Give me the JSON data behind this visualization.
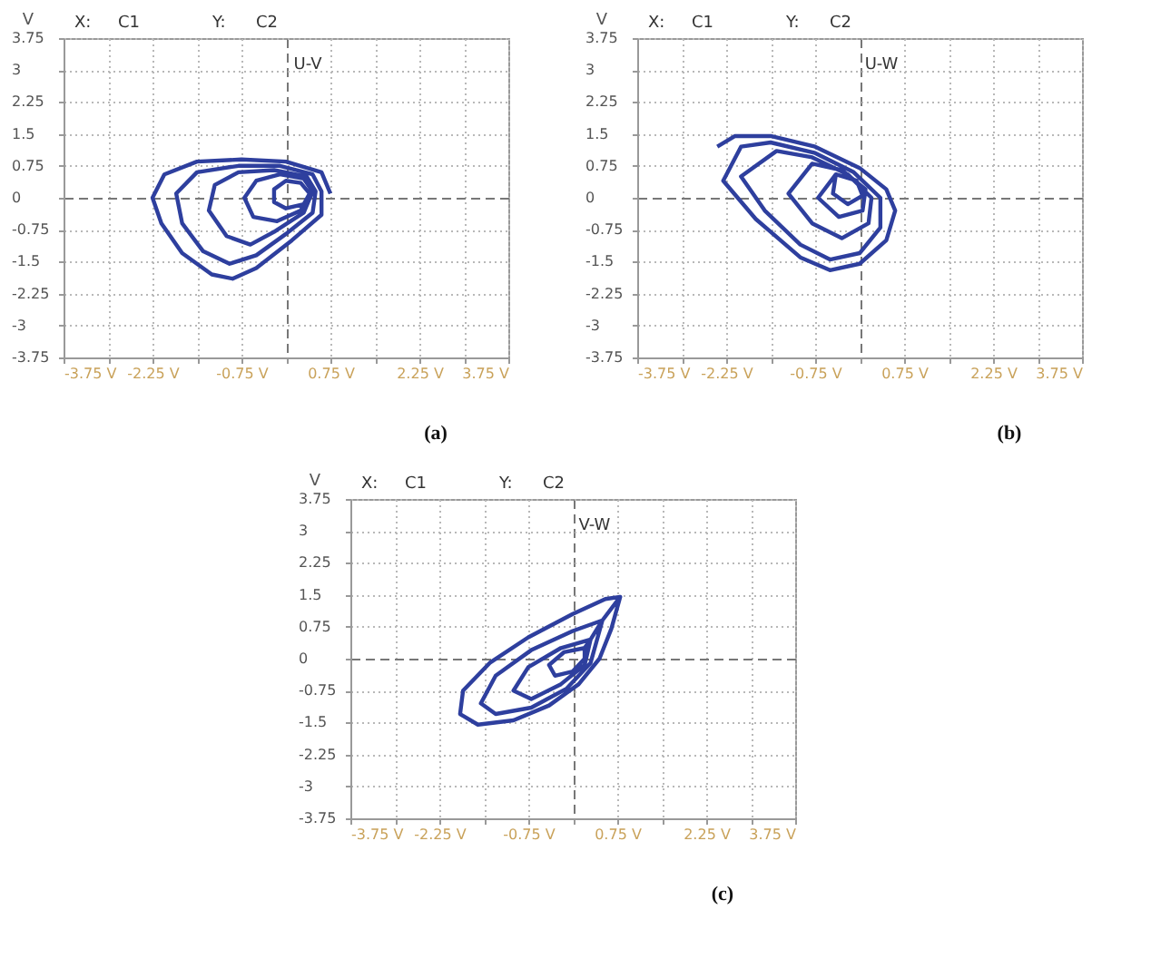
{
  "chart_data": [
    {
      "type": "line",
      "title": "U-V",
      "ylabel": "V",
      "annotations": [
        "X:",
        "C1",
        "Y:",
        "C2",
        "(a)"
      ],
      "xlim": [
        -3.75,
        3.75
      ],
      "ylim": [
        -3.75,
        3.75
      ],
      "xticks": [
        {
          "value": -3.75,
          "label": "-3.75 V"
        },
        {
          "value": -3,
          "label": null
        },
        {
          "value": -2.25,
          "label": "-2.25 V"
        },
        {
          "value": -1.5,
          "label": null
        },
        {
          "value": -0.75,
          "label": "-0.75 V"
        },
        {
          "value": 0,
          "label": null
        },
        {
          "value": 0.75,
          "label": "0.75 V"
        },
        {
          "value": 1.5,
          "label": null
        },
        {
          "value": 2.25,
          "label": "2.25 V"
        },
        {
          "value": 3,
          "label": null
        },
        {
          "value": 3.75,
          "label": "3.75 V"
        }
      ],
      "yticks": [
        -3.75,
        -3,
        -2.25,
        -1.5,
        -0.75,
        0,
        0.75,
        1.5,
        2.25,
        3,
        3.75
      ],
      "grid": true,
      "marker": "none",
      "line_style": "solid",
      "series": [
        {
          "color": "#2e3f9e",
          "x": [
            0.75,
            0.6,
            0.0,
            -0.75,
            -1.5,
            -2.05,
            -2.25,
            -2.1,
            -1.75,
            -1.25,
            -0.9,
            -0.5,
            0.1,
            0.6,
            0.6,
            0.45,
            -0.1,
            -0.8,
            -1.5,
            -1.85,
            -1.75,
            -1.4,
            -0.95,
            -0.5,
            0.0,
            0.45,
            0.5,
            0.35,
            -0.2,
            -0.8,
            -1.2,
            -1.3,
            -1.0,
            -0.6,
            -0.2,
            0.3,
            0.45,
            0.3,
            -0.1,
            -0.5,
            -0.7,
            -0.55,
            -0.15,
            0.25,
            0.4,
            0.25,
            0.0,
            -0.2,
            -0.2,
            0.0,
            0.3,
            0.4
          ],
          "values": [
            0.1,
            0.6,
            0.85,
            0.9,
            0.85,
            0.55,
            0.0,
            -0.6,
            -1.3,
            -1.8,
            -1.9,
            -1.65,
            -1.0,
            -0.4,
            0.15,
            0.55,
            0.75,
            0.75,
            0.6,
            0.1,
            -0.6,
            -1.25,
            -1.55,
            -1.35,
            -0.85,
            -0.35,
            0.15,
            0.5,
            0.65,
            0.6,
            0.3,
            -0.3,
            -0.9,
            -1.1,
            -0.8,
            -0.35,
            0.15,
            0.45,
            0.55,
            0.4,
            0.0,
            -0.45,
            -0.55,
            -0.3,
            0.1,
            0.35,
            0.4,
            0.2,
            -0.1,
            -0.25,
            -0.15,
            0.1
          ]
        }
      ]
    },
    {
      "type": "line",
      "title": "U-W",
      "ylabel": "V",
      "annotations": [
        "X:",
        "C1",
        "Y:",
        "C2",
        "(b)"
      ],
      "xlim": [
        -3.75,
        3.75
      ],
      "ylim": [
        -3.75,
        3.75
      ],
      "xticks": [
        {
          "value": -3.75,
          "label": "-3.75 V"
        },
        {
          "value": -3,
          "label": null
        },
        {
          "value": -2.25,
          "label": "-2.25 V"
        },
        {
          "value": -1.5,
          "label": null
        },
        {
          "value": -0.75,
          "label": "-0.75 V"
        },
        {
          "value": 0,
          "label": null
        },
        {
          "value": 0.75,
          "label": "0.75 V"
        },
        {
          "value": 1.5,
          "label": null
        },
        {
          "value": 2.25,
          "label": "2.25 V"
        },
        {
          "value": 3,
          "label": null
        },
        {
          "value": 3.75,
          "label": "3.75 V"
        }
      ],
      "yticks": [
        -3.75,
        -3,
        -2.25,
        -1.5,
        -0.75,
        0,
        0.75,
        1.5,
        2.25,
        3,
        3.75
      ],
      "grid": true,
      "marker": "none",
      "line_style": "solid",
      "series": [
        {
          "color": "#2e3f9e",
          "x": [
            -2.4,
            -2.1,
            -1.5,
            -0.75,
            0.0,
            0.45,
            0.6,
            0.45,
            0.0,
            -0.5,
            -1.0,
            -1.75,
            -2.3,
            -2.0,
            -1.5,
            -0.75,
            -0.1,
            0.35,
            0.35,
            0.0,
            -0.5,
            -1.0,
            -1.6,
            -2.0,
            -1.4,
            -0.8,
            -0.2,
            0.2,
            0.15,
            -0.3,
            -0.8,
            -1.2,
            -0.8,
            -0.3,
            0.1,
            0.05,
            -0.35,
            -0.7,
            -0.4,
            -0.05,
            0.05,
            -0.2,
            -0.45,
            -0.4
          ],
          "values": [
            1.2,
            1.45,
            1.45,
            1.2,
            0.7,
            0.2,
            -0.3,
            -1.0,
            -1.55,
            -1.7,
            -1.4,
            -0.5,
            0.4,
            1.2,
            1.3,
            1.05,
            0.6,
            0.0,
            -0.7,
            -1.3,
            -1.45,
            -1.1,
            -0.3,
            0.5,
            1.1,
            0.95,
            0.55,
            0.0,
            -0.6,
            -0.95,
            -0.6,
            0.1,
            0.8,
            0.65,
            0.2,
            -0.3,
            -0.45,
            0.0,
            0.55,
            0.4,
            0.05,
            -0.15,
            0.1,
            0.55
          ]
        }
      ]
    },
    {
      "type": "line",
      "title": "V-W",
      "ylabel": "V",
      "annotations": [
        "X:",
        "C1",
        "Y:",
        "C2",
        "(c)"
      ],
      "xlim": [
        -3.75,
        3.75
      ],
      "ylim": [
        -3.75,
        3.75
      ],
      "xticks": [
        {
          "value": -3.75,
          "label": "-3.75 V"
        },
        {
          "value": -3,
          "label": null
        },
        {
          "value": -2.25,
          "label": "-2.25 V"
        },
        {
          "value": -1.5,
          "label": null
        },
        {
          "value": -0.75,
          "label": "-0.75 V"
        },
        {
          "value": 0,
          "label": null
        },
        {
          "value": 0.75,
          "label": "0.75 V"
        },
        {
          "value": 1.5,
          "label": null
        },
        {
          "value": 2.25,
          "label": "2.25 V"
        },
        {
          "value": 3,
          "label": null
        },
        {
          "value": 3.75,
          "label": "3.75 V"
        }
      ],
      "yticks": [
        -3.75,
        -3,
        -2.25,
        -1.5,
        -0.75,
        0,
        0.75,
        1.5,
        2.25,
        3,
        3.75
      ],
      "grid": true,
      "marker": "none",
      "line_style": "solid",
      "series": [
        {
          "color": "#2e3f9e",
          "x": [
            0.8,
            0.55,
            0.0,
            -0.75,
            -1.4,
            -1.85,
            -1.9,
            -1.6,
            -1.0,
            -0.4,
            0.1,
            0.45,
            0.65,
            0.8,
            0.5,
            0.0,
            -0.7,
            -1.3,
            -1.55,
            -1.3,
            -0.7,
            -0.1,
            0.3,
            0.5,
            0.3,
            -0.2,
            -0.75,
            -1.0,
            -0.7,
            -0.2,
            0.2,
            0.3,
            0.2,
            -0.15,
            -0.4,
            -0.3,
            0.0,
            0.2,
            0.2
          ],
          "values": [
            1.45,
            1.4,
            1.05,
            0.5,
            -0.1,
            -0.75,
            -1.3,
            -1.55,
            -1.45,
            -1.1,
            -0.6,
            0.0,
            0.7,
            1.45,
            0.9,
            0.65,
            0.2,
            -0.4,
            -1.05,
            -1.3,
            -1.15,
            -0.7,
            -0.1,
            0.9,
            0.45,
            0.25,
            -0.2,
            -0.75,
            -0.95,
            -0.6,
            -0.15,
            0.45,
            0.25,
            0.15,
            -0.15,
            -0.4,
            -0.3,
            0.0,
            0.25
          ]
        }
      ]
    }
  ]
}
